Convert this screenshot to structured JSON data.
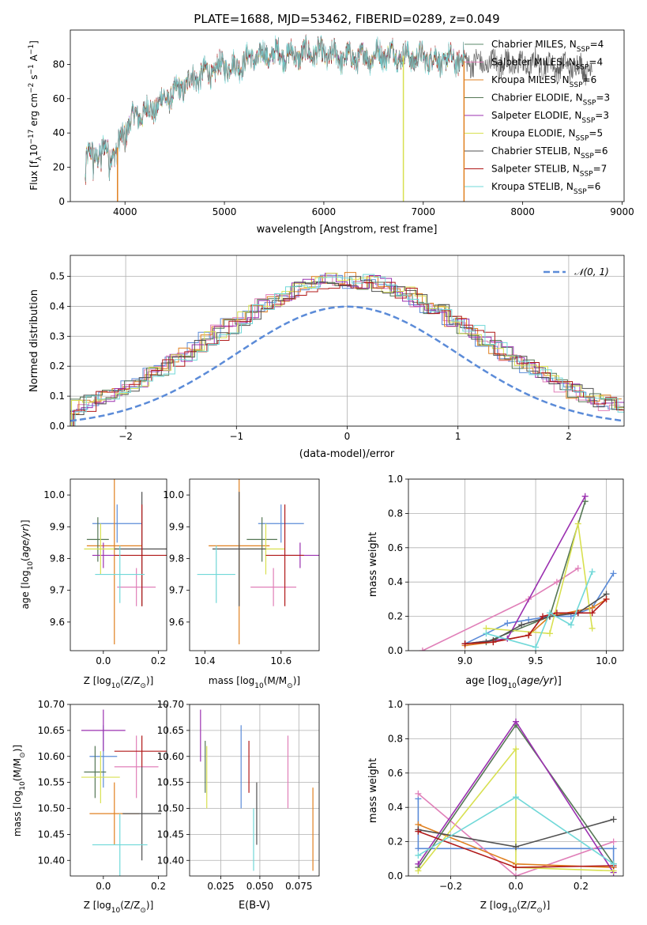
{
  "figure": {
    "title": "PLATE=1688, MJD=53462, FIBERID=0289, z=0.049"
  },
  "series_legend": [
    {
      "name": "Chabrier MILES, N",
      "n": "4",
      "color": "#5b8a6a"
    },
    {
      "name": "Salpeter MILES, N",
      "n": "4",
      "color": "#e07fb8"
    },
    {
      "name": "Kroupa MILES, N",
      "n": "6",
      "color": "#e08020"
    },
    {
      "name": "Chabrier ELODIE, N",
      "n": "3",
      "color": "#557755"
    },
    {
      "name": "Salpeter ELODIE, N",
      "n": "3",
      "color": "#9b30b0"
    },
    {
      "name": "Kroupa ELODIE, N",
      "n": "5",
      "color": "#d8e050"
    },
    {
      "name": "Chabrier STELIB, N",
      "n": "6",
      "color": "#505050"
    },
    {
      "name": "Salpeter STELIB, N",
      "n": "7",
      "color": "#b01818"
    },
    {
      "name": "Kroupa STELIB, N",
      "n": "6",
      "color": "#70d8d8"
    }
  ],
  "ssp_subscript": "SSP",
  "chart_data": [
    {
      "id": "spectrum",
      "type": "line",
      "xlabel": "wavelength [Angstrom, rest frame]",
      "ylabel": "Flux [f",
      "ylabel_parts": [
        "Flux [f",
        "λ",
        "10",
        "−17",
        " erg cm",
        "−2",
        " s",
        "−1",
        " A",
        "−1",
        "]"
      ],
      "xlim": [
        3450,
        9020
      ],
      "ylim": [
        0,
        100
      ],
      "xticks": [
        4000,
        5000,
        6000,
        7000,
        8000,
        9000
      ],
      "yticks": [
        0,
        20,
        40,
        60,
        80
      ],
      "grid": false,
      "legend": "top-right",
      "envelope": {
        "x": [
          3600,
          3700,
          3800,
          3900,
          4000,
          4100,
          4200,
          4300,
          4400,
          4500,
          4600,
          4700,
          4800,
          4900,
          5000,
          5100,
          5200,
          5300,
          5400,
          5500,
          5600,
          5700,
          5800,
          5900,
          6000,
          6100,
          6200,
          6300,
          6400,
          6500,
          6600,
          6700,
          6800,
          6900,
          7000,
          7100,
          7200,
          7300,
          7400
        ],
        "y": [
          25,
          28,
          30,
          28,
          42,
          50,
          52,
          55,
          60,
          63,
          68,
          72,
          75,
          76,
          80,
          78,
          82,
          84,
          85,
          86,
          86,
          85,
          86,
          87,
          86,
          85,
          84,
          84,
          84,
          85,
          86,
          86,
          85,
          84,
          84,
          83,
          82,
          83,
          82
        ]
      },
      "tail": {
        "x": [
          7400,
          7600,
          7800,
          8000,
          8200,
          8400,
          8600,
          8700
        ],
        "y": [
          82,
          80,
          81,
          80,
          80,
          79,
          78,
          78
        ]
      },
      "drops": [
        {
          "x": 3925,
          "series": "Kroupa MILES"
        },
        {
          "x": 6800,
          "series": "Kroupa ELODIE"
        },
        {
          "x": 7410,
          "series": "Kroupa MILES"
        }
      ]
    },
    {
      "id": "residuals",
      "type": "step",
      "xlabel": "(data-model)/error",
      "ylabel": "Normed distribution",
      "xlim": [
        -2.5,
        2.5
      ],
      "ylim": [
        0,
        0.57
      ],
      "xticks": [
        -2,
        -1,
        0,
        1,
        2
      ],
      "yticks": [
        0.0,
        0.1,
        0.2,
        0.3,
        0.4,
        0.5
      ],
      "grid": true,
      "legend": "top-right",
      "gauss_label": "𝒩(0, 1)",
      "gauss_color": "#5b8bd8",
      "hist_colors": [
        "#5b8bd8",
        "#e07fb8",
        "#e08020",
        "#557755",
        "#9b30b0",
        "#d8e050",
        "#505050",
        "#b01818",
        "#70d8d8"
      ]
    },
    {
      "id": "age_vs_Z",
      "type": "errorbar",
      "xlabel": "Z [log",
      "xlabel_parts": [
        "Z [log",
        "10",
        "(Z/Z",
        "⊙",
        ")]"
      ],
      "ylabel_parts": [
        "age  [log",
        "10",
        "(age/yr)]"
      ],
      "xlim": [
        -0.12,
        0.23
      ],
      "ylim": [
        9.51,
        10.05
      ],
      "xticks": [
        0.0,
        0.2
      ],
      "yticks": [
        9.6,
        9.7,
        9.8,
        9.9,
        10.0
      ],
      "points": [
        {
          "x": 0.05,
          "xerr": 0.09,
          "y": 9.91,
          "yerr": 0.06,
          "color": "#5b8bd8"
        },
        {
          "x": 0.12,
          "xerr": 0.07,
          "y": 9.71,
          "yerr": 0.06,
          "color": "#e07fb8"
        },
        {
          "x": 0.04,
          "xerr": 0.1,
          "y": 9.84,
          "yerr": 0.31,
          "color": "#e08020"
        },
        {
          "x": -0.02,
          "xerr": 0.04,
          "y": 9.86,
          "yerr": 0.07,
          "color": "#557755"
        },
        {
          "x": 0.0,
          "xerr": 0.04,
          "y": 9.81,
          "yerr": 0.04,
          "color": "#9b30b0"
        },
        {
          "x": -0.01,
          "xerr": 0.06,
          "y": 9.83,
          "yerr": 0.08,
          "color": "#d8e050"
        },
        {
          "x": 0.14,
          "xerr": 0.1,
          "y": 9.83,
          "yerr": 0.18,
          "color": "#505050"
        },
        {
          "x": 0.14,
          "xerr": 0.1,
          "y": 9.81,
          "yerr": 0.16,
          "color": "#b01818"
        },
        {
          "x": 0.06,
          "xerr": 0.09,
          "y": 9.75,
          "yerr": 0.09,
          "color": "#70d8d8"
        }
      ]
    },
    {
      "id": "age_vs_mass",
      "type": "errorbar",
      "xlabel_parts": [
        "mass [log",
        "10",
        "(M/M",
        "⊙",
        ")]"
      ],
      "xlim": [
        10.36,
        10.7
      ],
      "ylim": [
        9.51,
        10.05
      ],
      "xticks": [
        10.4,
        10.6
      ],
      "yticks": [
        9.6,
        9.7,
        9.8,
        9.9,
        10.0
      ],
      "points": [
        {
          "x": 10.6,
          "xerr": 0.06,
          "y": 9.91,
          "yerr": 0.06,
          "color": "#5b8bd8"
        },
        {
          "x": 10.58,
          "xerr": 0.06,
          "y": 9.71,
          "yerr": 0.06,
          "color": "#e07fb8"
        },
        {
          "x": 10.49,
          "xerr": 0.08,
          "y": 9.84,
          "yerr": 0.31,
          "color": "#e08020"
        },
        {
          "x": 10.55,
          "xerr": 0.04,
          "y": 9.86,
          "yerr": 0.07,
          "color": "#557755"
        },
        {
          "x": 10.65,
          "xerr": 0.05,
          "y": 9.81,
          "yerr": 0.04,
          "color": "#9b30b0"
        },
        {
          "x": 10.56,
          "xerr": 0.05,
          "y": 9.83,
          "yerr": 0.08,
          "color": "#d8e050"
        },
        {
          "x": 10.49,
          "xerr": 0.07,
          "y": 9.83,
          "yerr": 0.18,
          "color": "#505050"
        },
        {
          "x": 10.61,
          "xerr": 0.05,
          "y": 9.81,
          "yerr": 0.16,
          "color": "#b01818"
        },
        {
          "x": 10.43,
          "xerr": 0.05,
          "y": 9.75,
          "yerr": 0.09,
          "color": "#70d8d8"
        }
      ]
    },
    {
      "id": "massweight_vs_age",
      "type": "line",
      "xlabel_parts": [
        "age  [log",
        "10",
        "(age/yr)]"
      ],
      "ylabel": "mass weight",
      "xlim": [
        8.6,
        10.12
      ],
      "ylim": [
        0,
        1
      ],
      "xticks": [
        9.0,
        9.5,
        10.0
      ],
      "yticks": [
        0.0,
        0.2,
        0.4,
        0.6,
        0.8,
        1.0
      ],
      "grid": true,
      "series": [
        {
          "color": "#5b8bd8",
          "x": [
            9.0,
            9.3,
            9.45,
            9.6,
            9.75,
            9.9,
            10.05
          ],
          "y": [
            0.04,
            0.16,
            0.18,
            0.2,
            0.2,
            0.25,
            0.45
          ]
        },
        {
          "color": "#e07fb8",
          "x": [
            8.7,
            9.45,
            9.65,
            9.8
          ],
          "y": [
            0.0,
            0.3,
            0.4,
            0.48
          ]
        },
        {
          "color": "#e08020",
          "x": [
            9.0,
            9.2,
            9.45,
            9.6,
            9.9,
            10.0
          ],
          "y": [
            0.03,
            0.05,
            0.09,
            0.2,
            0.25,
            0.3
          ]
        },
        {
          "color": "#557755",
          "x": [
            9.15,
            9.6,
            9.85
          ],
          "y": [
            0.05,
            0.2,
            0.87
          ]
        },
        {
          "color": "#9b30b0",
          "x": [
            9.0,
            9.3,
            9.85
          ],
          "y": [
            0.04,
            0.07,
            0.9
          ]
        },
        {
          "color": "#d8e050",
          "x": [
            9.15,
            9.6,
            9.8,
            9.9
          ],
          "y": [
            0.13,
            0.1,
            0.74,
            0.13
          ]
        },
        {
          "color": "#505050",
          "x": [
            9.0,
            9.2,
            9.4,
            9.6,
            9.8,
            10.0
          ],
          "y": [
            0.04,
            0.06,
            0.15,
            0.2,
            0.22,
            0.33
          ]
        },
        {
          "color": "#b01818",
          "x": [
            9.0,
            9.2,
            9.45,
            9.55,
            9.65,
            9.8,
            9.9,
            10.0
          ],
          "y": [
            0.04,
            0.05,
            0.09,
            0.2,
            0.22,
            0.22,
            0.22,
            0.3
          ]
        },
        {
          "color": "#70d8d8",
          "x": [
            9.15,
            9.5,
            9.6,
            9.75,
            9.9
          ],
          "y": [
            0.1,
            0.02,
            0.22,
            0.15,
            0.46
          ]
        }
      ]
    },
    {
      "id": "mass_vs_Z",
      "type": "errorbar",
      "xlabel_parts": [
        "Z [log",
        "10",
        "(Z/Z",
        "⊙",
        ")]"
      ],
      "ylabel_parts": [
        "mass [log",
        "10",
        "(M/M",
        "⊙",
        ")]"
      ],
      "xlim": [
        -0.12,
        0.23
      ],
      "ylim": [
        10.37,
        10.7
      ],
      "xticks": [
        0.0,
        0.2
      ],
      "yticks": [
        10.4,
        10.45,
        10.5,
        10.55,
        10.6,
        10.65,
        10.7
      ],
      "points": [
        {
          "x": 0.0,
          "xerr": 0.05,
          "y": 10.6,
          "yerr": 0.06,
          "color": "#5b8bd8"
        },
        {
          "x": 0.12,
          "xerr": 0.08,
          "y": 10.58,
          "yerr": 0.06,
          "color": "#e07fb8"
        },
        {
          "x": 0.04,
          "xerr": 0.09,
          "y": 10.49,
          "yerr": 0.06,
          "color": "#e08020"
        },
        {
          "x": -0.03,
          "xerr": 0.04,
          "y": 10.57,
          "yerr": 0.05,
          "color": "#557755"
        },
        {
          "x": 0.0,
          "xerr": 0.08,
          "y": 10.65,
          "yerr": 0.04,
          "color": "#9b30b0"
        },
        {
          "x": -0.01,
          "xerr": 0.07,
          "y": 10.56,
          "yerr": 0.05,
          "color": "#d8e050"
        },
        {
          "x": 0.14,
          "xerr": 0.07,
          "y": 10.49,
          "yerr": 0.09,
          "color": "#505050"
        },
        {
          "x": 0.14,
          "xerr": 0.1,
          "y": 10.61,
          "yerr": 0.03,
          "color": "#b01818"
        },
        {
          "x": 0.06,
          "xerr": 0.1,
          "y": 10.43,
          "yerr": 0.06,
          "color": "#70d8d8"
        }
      ]
    },
    {
      "id": "mass_vs_ebv",
      "type": "errorbar",
      "xlabel": "E(B-V)",
      "xlim": [
        0.005,
        0.088
      ],
      "ylim": [
        10.37,
        10.7
      ],
      "xticks": [
        0.025,
        0.05,
        0.075
      ],
      "xtick_labels": [
        "0.025",
        "0.050",
        "0.075"
      ],
      "yticks": [
        10.4,
        10.45,
        10.5,
        10.55,
        10.6,
        10.65,
        10.7
      ],
      "points": [
        {
          "x": 0.038,
          "xerr": 0,
          "y": 10.58,
          "yerr": 0.08,
          "color": "#5b8bd8"
        },
        {
          "x": 0.068,
          "xerr": 0,
          "y": 10.57,
          "yerr": 0.07,
          "color": "#e07fb8"
        },
        {
          "x": 0.084,
          "xerr": 0,
          "y": 10.46,
          "yerr": 0.08,
          "color": "#e08020"
        },
        {
          "x": 0.015,
          "xerr": 0,
          "y": 10.58,
          "yerr": 0.05,
          "color": "#557755"
        },
        {
          "x": 0.012,
          "xerr": 0,
          "y": 10.64,
          "yerr": 0.05,
          "color": "#9b30b0"
        },
        {
          "x": 0.016,
          "xerr": 0,
          "y": 10.56,
          "yerr": 0.06,
          "color": "#d8e050"
        },
        {
          "x": 0.048,
          "xerr": 0,
          "y": 10.49,
          "yerr": 0.06,
          "color": "#505050"
        },
        {
          "x": 0.043,
          "xerr": 0,
          "y": 10.58,
          "yerr": 0.05,
          "color": "#b01818"
        },
        {
          "x": 0.046,
          "xerr": 0,
          "y": 10.44,
          "yerr": 0.06,
          "color": "#70d8d8"
        }
      ]
    },
    {
      "id": "massweight_vs_Z",
      "type": "line",
      "xlabel_parts": [
        "Z [log",
        "10",
        "(Z/Z",
        "⊙",
        ")]"
      ],
      "ylabel": "mass weight",
      "xlim": [
        -0.33,
        0.33
      ],
      "ylim": [
        0,
        1
      ],
      "xticks": [
        -0.2,
        0.0,
        0.2
      ],
      "xtick_labels": [
        "−0.2",
        "0.0",
        "0.2"
      ],
      "yticks": [
        0.0,
        0.2,
        0.4,
        0.6,
        0.8,
        1.0
      ],
      "grid": true,
      "series": [
        {
          "color": "#5b8bd8",
          "x": [
            -0.3,
            -0.3,
            0.0,
            0.3,
            0.3
          ],
          "y": [
            0.45,
            0.16,
            0.16,
            0.16,
            0.05
          ]
        },
        {
          "color": "#e07fb8",
          "x": [
            -0.3,
            0.0,
            0.3
          ],
          "y": [
            0.48,
            0.0,
            0.2
          ]
        },
        {
          "color": "#e08020",
          "x": [
            -0.3,
            0.0,
            0.3
          ],
          "y": [
            0.3,
            0.07,
            0.05
          ]
        },
        {
          "color": "#557755",
          "x": [
            -0.3,
            0.0,
            0.3
          ],
          "y": [
            0.05,
            0.88,
            0.07
          ]
        },
        {
          "color": "#9b30b0",
          "x": [
            -0.3,
            0.0,
            0.3
          ],
          "y": [
            0.07,
            0.9,
            0.02
          ]
        },
        {
          "color": "#d8e050",
          "x": [
            -0.3,
            0.0,
            0.0,
            0.3
          ],
          "y": [
            0.03,
            0.74,
            0.05,
            0.03
          ]
        },
        {
          "color": "#505050",
          "x": [
            -0.3,
            0.0,
            0.3
          ],
          "y": [
            0.27,
            0.17,
            0.33
          ]
        },
        {
          "color": "#b01818",
          "x": [
            -0.3,
            0.0,
            0.3
          ],
          "y": [
            0.26,
            0.05,
            0.06
          ]
        },
        {
          "color": "#70d8d8",
          "x": [
            -0.3,
            0.0,
            0.3
          ],
          "y": [
            0.12,
            0.46,
            0.07
          ]
        }
      ]
    }
  ]
}
